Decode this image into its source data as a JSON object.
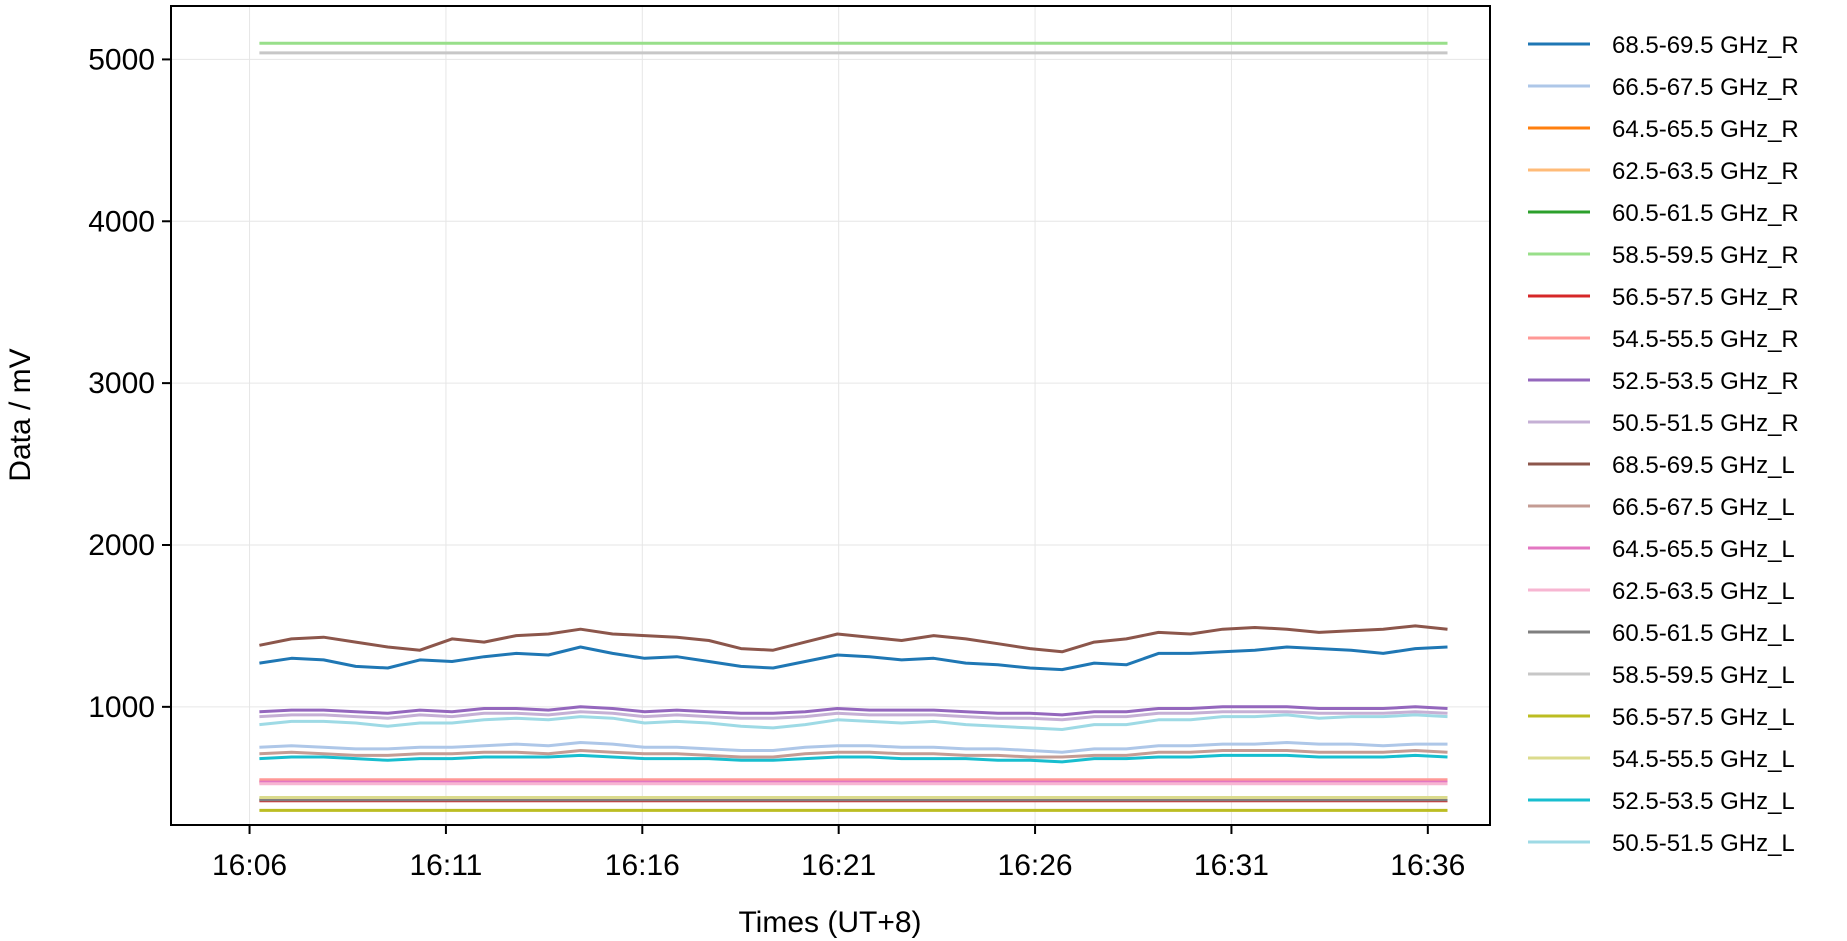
{
  "chart_data": {
    "type": "line",
    "title": "",
    "xlabel": "Times (UT+8)",
    "ylabel": "Data / mV",
    "x_start": "16:06:15",
    "x_end": "16:36:30",
    "xlim": [
      "16:04:00",
      "16:37:35"
    ],
    "ylim": [
      270,
      5330
    ],
    "xticks": [
      "16:06",
      "16:11",
      "16:16",
      "16:21",
      "16:26",
      "16:31",
      "16:36"
    ],
    "yticks": [
      1000,
      2000,
      3000,
      4000,
      5000
    ],
    "grid": true,
    "legend_position": "outside-right",
    "series": [
      {
        "name": "68.5-69.5 GHz_R",
        "color": "#1f77b4",
        "values": [
          1270,
          1300,
          1290,
          1250,
          1240,
          1290,
          1280,
          1310,
          1330,
          1320,
          1370,
          1330,
          1300,
          1310,
          1280,
          1250,
          1240,
          1280,
          1320,
          1310,
          1290,
          1300,
          1270,
          1260,
          1240,
          1230,
          1270,
          1260,
          1330,
          1330,
          1340,
          1350,
          1370,
          1360,
          1350,
          1330,
          1360,
          1370
        ]
      },
      {
        "name": "66.5-67.5 GHz_R",
        "color": "#aec7e8",
        "values": [
          750,
          760,
          750,
          740,
          740,
          750,
          750,
          760,
          770,
          760,
          780,
          770,
          750,
          750,
          740,
          730,
          730,
          750,
          760,
          760,
          750,
          750,
          740,
          740,
          730,
          720,
          740,
          740,
          760,
          760,
          770,
          770,
          780,
          770,
          770,
          760,
          770,
          770
        ]
      },
      {
        "name": "64.5-65.5 GHz_R",
        "color": "#ff7f0e",
        "values": [
          540,
          540,
          540,
          540,
          540,
          540,
          540,
          540,
          540,
          540,
          540,
          540,
          540,
          540,
          540,
          540,
          540,
          540,
          540,
          540,
          540,
          540,
          540,
          540,
          540,
          540,
          540,
          540,
          540,
          540,
          540,
          540,
          540,
          540,
          540,
          540,
          540,
          540
        ]
      },
      {
        "name": "62.5-63.5 GHz_R",
        "color": "#ffbb78",
        "values": [
          530,
          530,
          530,
          530,
          530,
          530,
          530,
          530,
          530,
          530,
          530,
          530,
          530,
          530,
          530,
          530,
          530,
          530,
          530,
          530,
          530,
          530,
          530,
          530,
          530,
          530,
          530,
          530,
          530,
          530,
          530,
          530,
          530,
          530,
          530,
          530,
          530,
          530
        ]
      },
      {
        "name": "60.5-61.5 GHz_R",
        "color": "#2ca02c",
        "values": [
          430,
          430,
          430,
          430,
          430,
          430,
          430,
          430,
          430,
          430,
          430,
          430,
          430,
          430,
          430,
          430,
          430,
          430,
          430,
          430,
          430,
          430,
          430,
          430,
          430,
          430,
          430,
          430,
          430,
          430,
          430,
          430,
          430,
          430,
          430,
          430,
          430,
          430
        ]
      },
      {
        "name": "58.5-59.5 GHz_R",
        "color": "#98df8a",
        "values": [
          5100,
          5100,
          5100,
          5100,
          5100,
          5100,
          5100,
          5100,
          5100,
          5100,
          5100,
          5100,
          5100,
          5100,
          5100,
          5100,
          5100,
          5100,
          5100,
          5100,
          5100,
          5100,
          5100,
          5100,
          5100,
          5100,
          5100,
          5100,
          5100,
          5100,
          5100,
          5100,
          5100,
          5100,
          5100,
          5100,
          5100,
          5100
        ]
      },
      {
        "name": "56.5-57.5 GHz_R",
        "color": "#d62728",
        "values": [
          420,
          420,
          420,
          420,
          420,
          420,
          420,
          420,
          420,
          420,
          420,
          420,
          420,
          420,
          420,
          420,
          420,
          420,
          420,
          420,
          420,
          420,
          420,
          420,
          420,
          420,
          420,
          420,
          420,
          420,
          420,
          420,
          420,
          420,
          420,
          420,
          420,
          420
        ]
      },
      {
        "name": "54.5-55.5 GHz_R",
        "color": "#ff9896",
        "values": [
          550,
          550,
          550,
          550,
          550,
          550,
          550,
          550,
          550,
          550,
          550,
          550,
          550,
          550,
          550,
          550,
          550,
          550,
          550,
          550,
          550,
          550,
          550,
          550,
          550,
          550,
          550,
          550,
          550,
          550,
          550,
          550,
          550,
          550,
          550,
          550,
          550,
          550
        ]
      },
      {
        "name": "52.5-53.5 GHz_R",
        "color": "#9467bd",
        "values": [
          970,
          980,
          980,
          970,
          960,
          980,
          970,
          990,
          990,
          980,
          1000,
          990,
          970,
          980,
          970,
          960,
          960,
          970,
          990,
          980,
          980,
          980,
          970,
          960,
          960,
          950,
          970,
          970,
          990,
          990,
          1000,
          1000,
          1000,
          990,
          990,
          990,
          1000,
          990
        ]
      },
      {
        "name": "50.5-51.5 GHz_R",
        "color": "#c5b0d5",
        "values": [
          940,
          950,
          950,
          940,
          930,
          950,
          940,
          960,
          960,
          950,
          970,
          960,
          940,
          950,
          940,
          930,
          930,
          940,
          960,
          950,
          950,
          950,
          940,
          930,
          930,
          920,
          940,
          940,
          960,
          960,
          970,
          970,
          970,
          960,
          960,
          960,
          970,
          960
        ]
      },
      {
        "name": "68.5-69.5 GHz_L",
        "color": "#8c564b",
        "values": [
          1380,
          1420,
          1430,
          1400,
          1370,
          1350,
          1420,
          1400,
          1440,
          1450,
          1480,
          1450,
          1440,
          1430,
          1410,
          1360,
          1350,
          1400,
          1450,
          1430,
          1410,
          1440,
          1420,
          1390,
          1360,
          1340,
          1400,
          1420,
          1460,
          1450,
          1480,
          1490,
          1480,
          1460,
          1470,
          1480,
          1500,
          1480
        ]
      },
      {
        "name": "66.5-67.5 GHz_L",
        "color": "#c49c94",
        "values": [
          710,
          720,
          710,
          700,
          700,
          710,
          710,
          720,
          720,
          710,
          730,
          720,
          710,
          710,
          700,
          690,
          690,
          710,
          720,
          720,
          710,
          710,
          700,
          700,
          690,
          690,
          700,
          700,
          720,
          720,
          730,
          730,
          730,
          720,
          720,
          720,
          730,
          720
        ]
      },
      {
        "name": "64.5-65.5 GHz_L",
        "color": "#e377c2",
        "values": [
          535,
          535,
          535,
          535,
          535,
          535,
          535,
          535,
          535,
          535,
          535,
          535,
          535,
          535,
          535,
          535,
          535,
          535,
          535,
          535,
          535,
          535,
          535,
          535,
          535,
          535,
          535,
          535,
          535,
          535,
          535,
          535,
          535,
          535,
          535,
          535,
          535,
          535
        ]
      },
      {
        "name": "62.5-63.5 GHz_L",
        "color": "#f7b6d2",
        "values": [
          525,
          525,
          525,
          525,
          525,
          525,
          525,
          525,
          525,
          525,
          525,
          525,
          525,
          525,
          525,
          525,
          525,
          525,
          525,
          525,
          525,
          525,
          525,
          525,
          525,
          525,
          525,
          525,
          525,
          525,
          525,
          525,
          525,
          525,
          525,
          525,
          525,
          525
        ]
      },
      {
        "name": "60.5-61.5 GHz_L",
        "color": "#7f7f7f",
        "values": [
          425,
          425,
          425,
          425,
          425,
          425,
          425,
          425,
          425,
          425,
          425,
          425,
          425,
          425,
          425,
          425,
          425,
          425,
          425,
          425,
          425,
          425,
          425,
          425,
          425,
          425,
          425,
          425,
          425,
          425,
          425,
          425,
          425,
          425,
          425,
          425,
          425,
          425
        ]
      },
      {
        "name": "58.5-59.5 GHz_L",
        "color": "#c7c7c7",
        "values": [
          5040,
          5040,
          5040,
          5040,
          5040,
          5040,
          5040,
          5040,
          5040,
          5040,
          5040,
          5040,
          5040,
          5040,
          5040,
          5040,
          5040,
          5040,
          5040,
          5040,
          5040,
          5040,
          5040,
          5040,
          5040,
          5040,
          5040,
          5040,
          5040,
          5040,
          5040,
          5040,
          5040,
          5040,
          5040,
          5040,
          5040,
          5040
        ]
      },
      {
        "name": "56.5-57.5 GHz_L",
        "color": "#bcbd22",
        "values": [
          360,
          360,
          360,
          360,
          360,
          360,
          360,
          360,
          360,
          360,
          360,
          360,
          360,
          360,
          360,
          360,
          360,
          360,
          360,
          360,
          360,
          360,
          360,
          360,
          360,
          360,
          360,
          360,
          360,
          360,
          360,
          360,
          360,
          360,
          360,
          360,
          360,
          360
        ]
      },
      {
        "name": "54.5-55.5 GHz_L",
        "color": "#dbdb8d",
        "values": [
          440,
          440,
          440,
          440,
          440,
          440,
          440,
          440,
          440,
          440,
          440,
          440,
          440,
          440,
          440,
          440,
          440,
          440,
          440,
          440,
          440,
          440,
          440,
          440,
          440,
          440,
          440,
          440,
          440,
          440,
          440,
          440,
          440,
          440,
          440,
          440,
          440,
          440
        ]
      },
      {
        "name": "52.5-53.5 GHz_L",
        "color": "#17becf",
        "values": [
          680,
          690,
          690,
          680,
          670,
          680,
          680,
          690,
          690,
          690,
          700,
          690,
          680,
          680,
          680,
          670,
          670,
          680,
          690,
          690,
          680,
          680,
          680,
          670,
          670,
          660,
          680,
          680,
          690,
          690,
          700,
          700,
          700,
          690,
          690,
          690,
          700,
          690
        ]
      },
      {
        "name": "50.5-51.5 GHz_L",
        "color": "#9edae5",
        "values": [
          890,
          910,
          910,
          900,
          880,
          900,
          900,
          920,
          930,
          920,
          940,
          930,
          900,
          910,
          900,
          880,
          870,
          890,
          920,
          910,
          900,
          910,
          890,
          880,
          870,
          860,
          890,
          890,
          920,
          920,
          940,
          940,
          950,
          930,
          940,
          940,
          950,
          940
        ]
      }
    ]
  }
}
